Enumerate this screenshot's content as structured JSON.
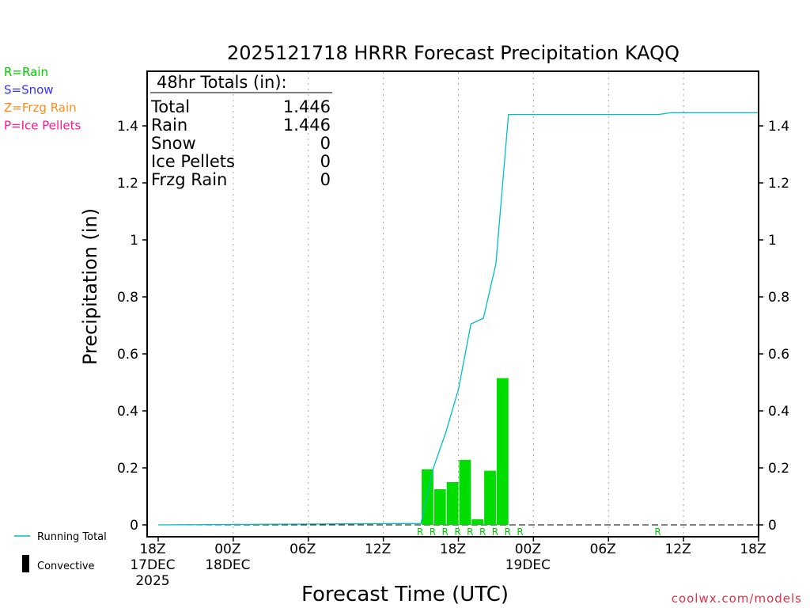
{
  "title": "2025121718 HRRR Forecast Precipitation KAQQ",
  "ptype_legend": [
    {
      "text": "R=Rain",
      "color": "#00cc00"
    },
    {
      "text": "S=Snow",
      "color": "#3333ff"
    },
    {
      "text": "Z=Frzg Rain",
      "color": "#ff8c1a"
    },
    {
      "text": "P=Ice Pellets",
      "color": "#ff1493"
    }
  ],
  "totals": {
    "header": "48hr Totals (in):",
    "rows": [
      {
        "label": "Total",
        "value": "1.446"
      },
      {
        "label": "Rain",
        "value": "1.446"
      },
      {
        "label": "Snow",
        "value": "0"
      },
      {
        "label": "Ice Pellets",
        "value": "0"
      },
      {
        "label": "Frzg Rain",
        "value": "0"
      }
    ]
  },
  "series_legend": {
    "running_total": "Running Total",
    "convective": "Convective"
  },
  "credit": "coolwx.com/models",
  "colors": {
    "bar": "#00dd00",
    "running_total": "#00bfbf",
    "rain_marker": "#00cc00",
    "grid": "#aaaaaa",
    "credit": "#e0304a"
  },
  "chart_data": {
    "type": "bar",
    "xlabel": "Forecast Time (UTC)",
    "ylabel": "Precipitation (in)",
    "x_unit": "forecast hour from 2025-12-17 18Z",
    "xlim": [
      0,
      48
    ],
    "ylim": [
      0,
      1.6
    ],
    "x_ticks": [
      {
        "hour": 0,
        "label": "18Z",
        "date": "17DEC",
        "year": "2025"
      },
      {
        "hour": 6,
        "label": "00Z",
        "date": "18DEC",
        "year": ""
      },
      {
        "hour": 12,
        "label": "06Z",
        "date": "",
        "year": ""
      },
      {
        "hour": 18,
        "label": "12Z",
        "date": "",
        "year": ""
      },
      {
        "hour": 24,
        "label": "18Z",
        "date": "",
        "year": ""
      },
      {
        "hour": 30,
        "label": "00Z",
        "date": "19DEC",
        "year": ""
      },
      {
        "hour": 36,
        "label": "06Z",
        "date": "",
        "year": ""
      },
      {
        "hour": 42,
        "label": "12Z",
        "date": "",
        "year": ""
      },
      {
        "hour": 48,
        "label": "18Z",
        "date": "",
        "year": ""
      }
    ],
    "y_ticks": [
      {
        "value": 0,
        "label": "0"
      },
      {
        "value": 0.2,
        "label": "0.2"
      },
      {
        "value": 0.4,
        "label": "0.4"
      },
      {
        "value": 0.6,
        "label": "0.6"
      },
      {
        "value": 0.8,
        "label": "0.8"
      },
      {
        "value": 1.0,
        "label": "1"
      },
      {
        "value": 1.2,
        "label": "1.2"
      },
      {
        "value": 1.4,
        "label": "1.4"
      }
    ],
    "hourly_precip": {
      "hours": [
        22,
        23,
        24,
        25,
        26,
        27,
        28,
        29
      ],
      "values": [
        0.195,
        0.125,
        0.15,
        0.228,
        0.02,
        0.19,
        0.515,
        0
      ]
    },
    "running_total": {
      "hours": [
        0,
        21,
        22,
        23,
        24,
        25,
        26,
        27,
        28,
        29,
        30,
        40,
        41,
        48
      ],
      "values": [
        0,
        0.005,
        0.2,
        0.325,
        0.475,
        0.705,
        0.725,
        0.915,
        1.44,
        1.44,
        1.44,
        1.44,
        1.446,
        1.446
      ]
    },
    "ptype_markers": [
      {
        "hour": 21,
        "type": "R"
      },
      {
        "hour": 22,
        "type": "R"
      },
      {
        "hour": 23,
        "type": "R"
      },
      {
        "hour": 24,
        "type": "R"
      },
      {
        "hour": 25,
        "type": "R"
      },
      {
        "hour": 26,
        "type": "R"
      },
      {
        "hour": 27,
        "type": "R"
      },
      {
        "hour": 28,
        "type": "R"
      },
      {
        "hour": 29,
        "type": "R"
      },
      {
        "hour": 40,
        "type": "R"
      }
    ]
  }
}
